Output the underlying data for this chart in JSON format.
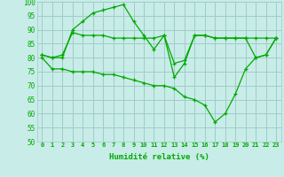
{
  "title": "",
  "xlabel": "Humidité relative (%)",
  "ylabel": "",
  "bg_color": "#c8ece8",
  "grid_color": "#a0ccc8",
  "line_color": "#00aa00",
  "ylim": [
    50,
    100
  ],
  "xlim": [
    -0.5,
    23.5
  ],
  "yticks": [
    50,
    55,
    60,
    65,
    70,
    75,
    80,
    85,
    90,
    95,
    100
  ],
  "xticks": [
    0,
    1,
    2,
    3,
    4,
    5,
    6,
    7,
    8,
    9,
    10,
    11,
    12,
    13,
    14,
    15,
    16,
    17,
    18,
    19,
    20,
    21,
    22,
    23
  ],
  "series": [
    [
      81,
      80,
      80,
      90,
      93,
      96,
      97,
      98,
      99,
      93,
      88,
      83,
      88,
      73,
      78,
      88,
      88,
      87,
      87,
      87,
      87,
      87,
      87,
      87
    ],
    [
      81,
      80,
      81,
      89,
      88,
      88,
      88,
      87,
      87,
      87,
      87,
      87,
      88,
      78,
      79,
      88,
      88,
      87,
      87,
      87,
      87,
      80,
      81,
      87
    ],
    [
      80,
      76,
      76,
      75,
      75,
      75,
      74,
      74,
      73,
      72,
      71,
      70,
      70,
      69,
      66,
      65,
      63,
      57,
      60,
      67,
      76,
      80,
      81,
      87
    ]
  ]
}
